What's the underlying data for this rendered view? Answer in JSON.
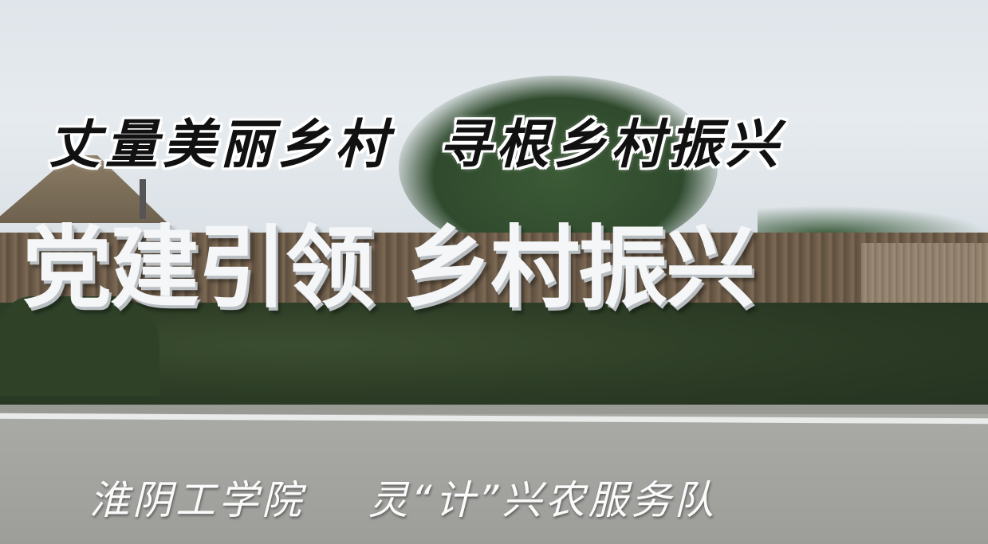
{
  "headline": "丈量美丽乡村  寻根乡村振兴",
  "sign": "党建引领 乡村振兴",
  "caption": "淮阴工学院    灵“计”兴农服务队",
  "colors": {
    "sky": "#e3e8ec",
    "sign_letters": "#f4f6f7",
    "headline_text": "#111111",
    "headline_outline": "#ffffff",
    "hedge": "#2a3a24",
    "road": "#a3a4a0"
  }
}
